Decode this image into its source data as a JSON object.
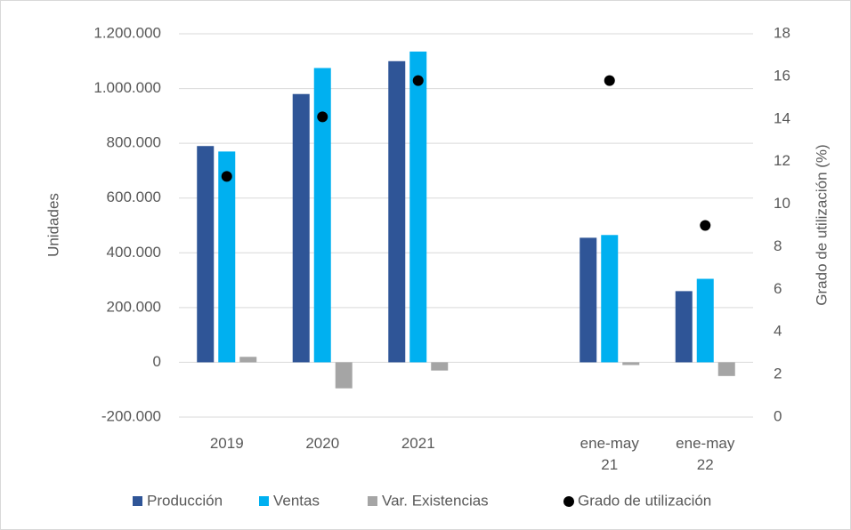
{
  "chart_data": {
    "type": "bar",
    "categories": [
      "2019",
      "2020",
      "2021",
      null,
      "ene-may 21",
      "ene-may 22"
    ],
    "series": [
      {
        "name": "Producción",
        "color": "#2f5597",
        "values": [
          790000,
          980000,
          1100000,
          null,
          455000,
          260000
        ]
      },
      {
        "name": "Ventas",
        "color": "#00b0f0",
        "values": [
          770000,
          1075000,
          1135000,
          null,
          465000,
          305000
        ]
      },
      {
        "name": "Var. Existencias",
        "color": "#a5a5a5",
        "values": [
          20000,
          -95000,
          -30000,
          null,
          -10000,
          -50000
        ]
      },
      {
        "name": "Grado de utilización",
        "color": "#000000",
        "type": "scatter",
        "axis": "y2",
        "values": [
          11.3,
          14.1,
          15.8,
          null,
          15.8,
          9.0
        ]
      }
    ],
    "ylabel": "Unidades",
    "y2label": "Grado de utilización (%)",
    "ylim": [
      -200000,
      1200000
    ],
    "yticks": [
      {
        "value": -200000,
        "label": "-200.000"
      },
      0,
      {
        "value": 200000,
        "label": "200.000"
      },
      {
        "value": 400000,
        "label": "400.000"
      },
      {
        "value": 600000,
        "label": "600.000"
      },
      {
        "value": 800000,
        "label": "800.000"
      },
      {
        "value": 1000000,
        "label": "1.000.000"
      },
      {
        "value": 1200000,
        "label": "1.200.000"
      }
    ],
    "y2lim": [
      0,
      18
    ],
    "y2ticks": [
      0,
      2,
      4,
      6,
      8,
      10,
      12,
      14,
      16,
      18
    ],
    "grid": true,
    "legend": "bottom"
  }
}
